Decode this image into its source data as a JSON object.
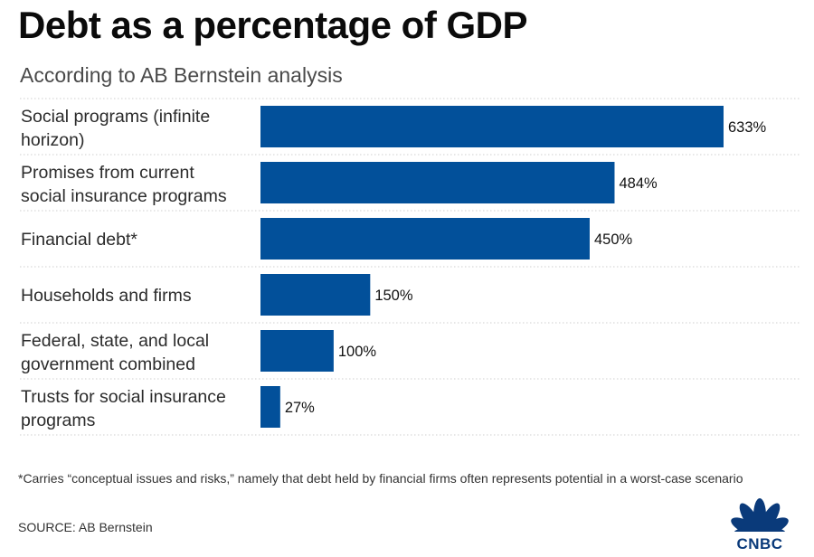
{
  "title": "Debt as a percentage of GDP",
  "subtitle": "According to AB Bernstein analysis",
  "chart_data": {
    "type": "bar",
    "orientation": "horizontal",
    "categories": [
      [
        "Social programs (infinite",
        "horizon)"
      ],
      [
        "Promises from current",
        "social insurance programs"
      ],
      [
        "Financial debt*"
      ],
      [
        "Households and firms"
      ],
      [
        "Federal, state, and local",
        "government combined"
      ],
      [
        "Trusts for social insurance",
        "programs"
      ]
    ],
    "values": [
      633,
      484,
      450,
      150,
      100,
      27
    ],
    "value_labels": [
      "633%",
      "484%",
      "450%",
      "150%",
      "100%",
      "27%"
    ],
    "unit": "%",
    "xlim": [
      0,
      633
    ],
    "bar_color": "#02509a",
    "grid": "dotted horizontal separators"
  },
  "footnote": "*Carries “conceptual issues and risks,” namely that debt held by financial firms often represents potential in a worst-case scenario",
  "source": "SOURCE: AB Bernstein",
  "logo": {
    "text": "CNBC",
    "icon": "nbc-peacock-icon",
    "color": "#0a3a7a"
  }
}
